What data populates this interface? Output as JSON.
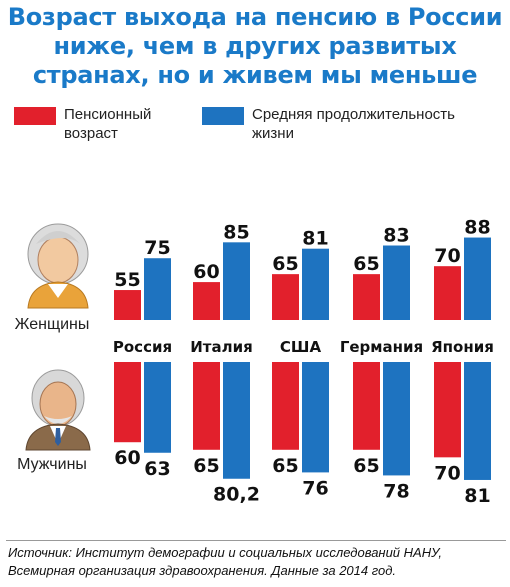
{
  "title": "Возраст выхода на пенсию в России ниже, чем в других развитых странах, но и живем мы меньше",
  "legend": {
    "pension_label": "Пенсионный возраст",
    "life_label": "Средняя продолжительность жизни"
  },
  "group_labels": {
    "women": "Женщины",
    "men": "Мужчины"
  },
  "icons": {
    "women": "elderly-woman-icon",
    "men": "elderly-man-icon"
  },
  "colors": {
    "pension": "#e2202c",
    "life": "#1e73c0"
  },
  "chart_data": {
    "type": "bar",
    "categories": [
      "Россия",
      "Италия",
      "США",
      "Германия",
      "Япония"
    ],
    "series": [
      {
        "name": "Пенсионный возраст (женщины)",
        "values": [
          55,
          60,
          65,
          65,
          70
        ]
      },
      {
        "name": "Средняя продолжительность жизни (женщины)",
        "values": [
          75,
          85,
          81,
          83,
          88
        ]
      },
      {
        "name": "Пенсионный возраст (мужчины)",
        "values": [
          60,
          65,
          65,
          65,
          70
        ]
      },
      {
        "name": "Средняя продолжительность жизни (мужчины)",
        "values": [
          63,
          "80,2",
          76,
          78,
          81
        ]
      }
    ],
    "value_labels": {
      "women_pension": [
        "55",
        "60",
        "65",
        "65",
        "70"
      ],
      "women_life": [
        "75",
        "85",
        "81",
        "83",
        "88"
      ],
      "men_pension": [
        "60",
        "65",
        "65",
        "65",
        "70"
      ],
      "men_life": [
        "63",
        "80,2",
        "76",
        "78",
        "81"
      ]
    },
    "legend_position": "top",
    "grid": false
  },
  "source_note": "Источник: Институт демографии и социальных исследований НАНУ, Всемирная организация здравоохранения. Данные за 2014 год."
}
